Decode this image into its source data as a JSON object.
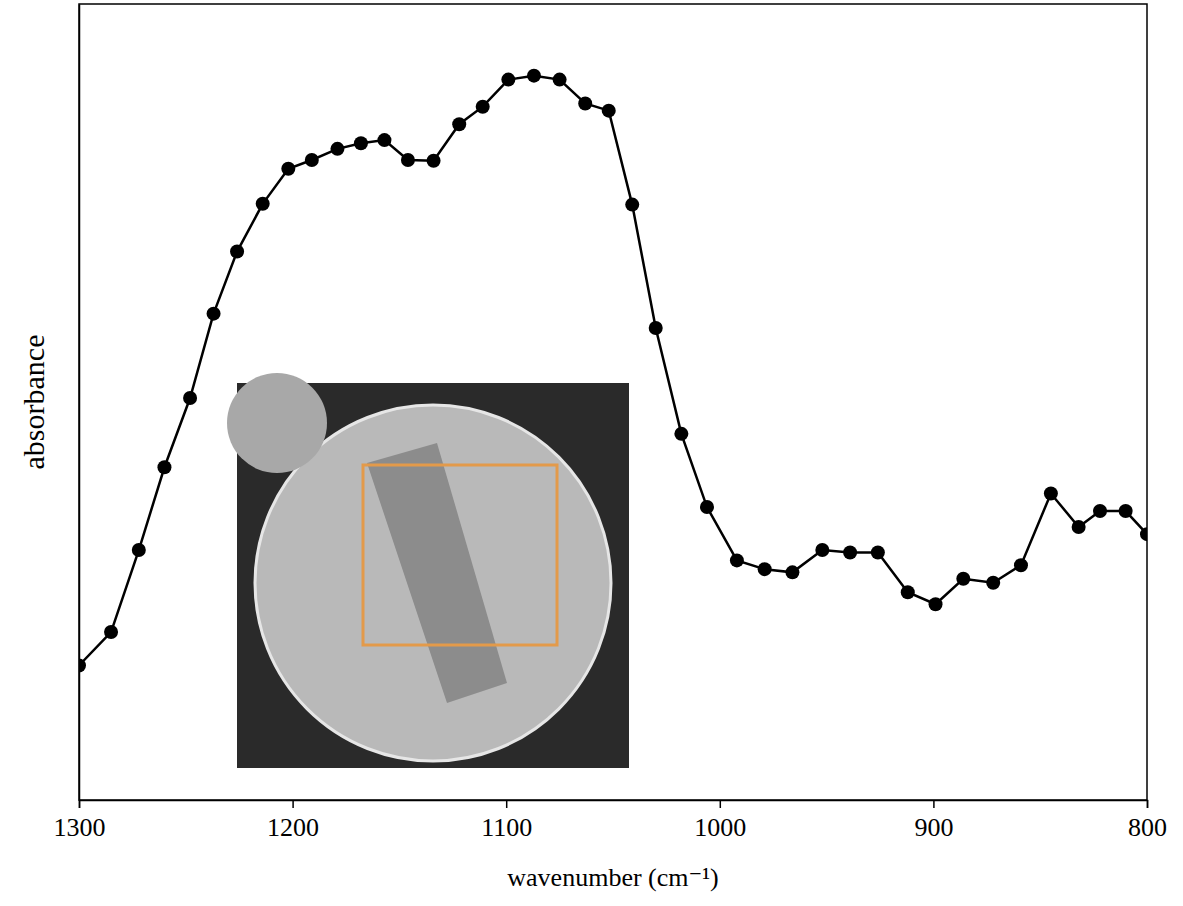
{
  "chart_data": {
    "type": "line",
    "x_label": "wavenumber (cm⁻¹)",
    "y_label": "absorbance",
    "x": [
      1300,
      1285,
      1272,
      1260,
      1248,
      1237,
      1226,
      1214,
      1202,
      1191,
      1179,
      1168,
      1157,
      1146,
      1134,
      1122,
      1111,
      1099,
      1087,
      1075,
      1063,
      1052,
      1041,
      1030,
      1018,
      1006,
      992,
      979,
      966,
      952,
      939,
      926,
      912,
      899,
      886,
      872,
      859,
      845,
      832,
      822,
      810,
      800
    ],
    "values": [
      0.169,
      0.211,
      0.314,
      0.418,
      0.505,
      0.611,
      0.689,
      0.749,
      0.793,
      0.804,
      0.818,
      0.825,
      0.829,
      0.804,
      0.803,
      0.849,
      0.871,
      0.905,
      0.91,
      0.905,
      0.875,
      0.866,
      0.748,
      0.593,
      0.46,
      0.368,
      0.301,
      0.29,
      0.286,
      0.314,
      0.311,
      0.311,
      0.261,
      0.246,
      0.278,
      0.273,
      0.295,
      0.385,
      0.343,
      0.363,
      0.363,
      0.334
    ],
    "color": "#000000",
    "marker": "circle",
    "line_style": "solid",
    "xlim": [
      1300,
      800
    ],
    "ylim": [
      0,
      1
    ],
    "xticks": [
      1300,
      1200,
      1100,
      1000,
      900,
      800
    ],
    "tick_labels": "x",
    "grid": false
  }
}
